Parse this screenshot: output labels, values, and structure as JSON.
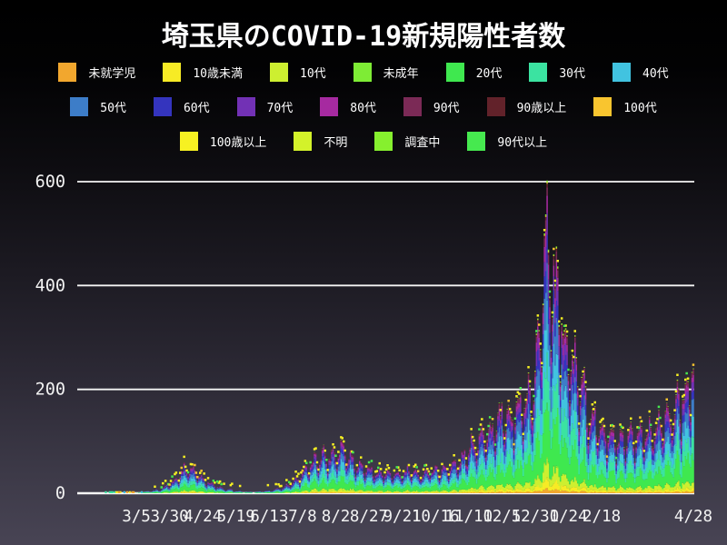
{
  "title": "埼玉県のCOVID-19新規陽性者数",
  "legend": {
    "rows": [
      [
        {
          "label": "未就学児",
          "color": "#F2A72E"
        },
        {
          "label": "10歳未満",
          "color": "#F7EB25"
        },
        {
          "label": "10代",
          "color": "#CDEF30"
        },
        {
          "label": "未成年",
          "color": "#7EEC35"
        },
        {
          "label": "20代",
          "color": "#3FE84F"
        },
        {
          "label": "30代",
          "color": "#3BE3A1"
        },
        {
          "label": "40代",
          "color": "#41C3E0"
        }
      ],
      [
        {
          "label": "50代",
          "color": "#3D7DC8"
        },
        {
          "label": "60代",
          "color": "#3434BE"
        },
        {
          "label": "70代",
          "color": "#7231B5"
        },
        {
          "label": "80代",
          "color": "#A62AA0"
        },
        {
          "label": "90代",
          "color": "#7B2A56"
        },
        {
          "label": "90歳以上",
          "color": "#62222A"
        },
        {
          "label": "100代",
          "color": "#F9C52F"
        }
      ],
      [
        {
          "label": "100歳以上",
          "color": "#F7F122"
        },
        {
          "label": "不明",
          "color": "#D3F22A"
        },
        {
          "label": "調査中",
          "color": "#86F02E"
        },
        {
          "label": "90代以上",
          "color": "#46E94F"
        }
      ]
    ]
  },
  "chart_data": {
    "type": "bar",
    "subtype": "stacked-daily-bars",
    "title": "埼玉県のCOVID-19新規陽性者数",
    "ylabel": "",
    "xlabel": "",
    "yticks": [
      0,
      200,
      400,
      600
    ],
    "ylim": [
      0,
      620
    ],
    "grid": true,
    "grid_color": "#F5F5F5",
    "background": {
      "top": "#000000",
      "bottom": "#474353"
    },
    "x_range_days": [
      -30,
      419
    ],
    "x_ticks": [
      {
        "label": "3/5",
        "day": 0
      },
      {
        "label": "3/30",
        "day": 25
      },
      {
        "label": "4/24",
        "day": 50
      },
      {
        "label": "5/19",
        "day": 75
      },
      {
        "label": "6/13",
        "day": 100
      },
      {
        "label": "7/8",
        "day": 125
      },
      {
        "label": "8/2",
        "day": 150
      },
      {
        "label": "8/27",
        "day": 175
      },
      {
        "label": "9/21",
        "day": 200
      },
      {
        "label": "10/16",
        "day": 225
      },
      {
        "label": "11/10",
        "day": 250
      },
      {
        "label": "12/5",
        "day": 275
      },
      {
        "label": "12/30",
        "day": 300
      },
      {
        "label": "1/24",
        "day": 325
      },
      {
        "label": "2/18",
        "day": 350
      },
      {
        "label": "4/28",
        "day": 419
      }
    ],
    "series": [
      {
        "name": "未就学児",
        "color": "#F2A72E",
        "fraction": 0.015
      },
      {
        "name": "10歳未満",
        "color": "#F7EB25",
        "fraction": 0.03
      },
      {
        "name": "10代",
        "color": "#CDEF30",
        "fraction": 0.055
      },
      {
        "name": "未成年",
        "color": "#7EEC35",
        "fraction": 0.005
      },
      {
        "name": "20代",
        "color": "#3FE84F",
        "fraction": 0.21
      },
      {
        "name": "30代",
        "color": "#3BE3A1",
        "fraction": 0.155
      },
      {
        "name": "40代",
        "color": "#41C3E0",
        "fraction": 0.145
      },
      {
        "name": "50代",
        "color": "#3D7DC8",
        "fraction": 0.125
      },
      {
        "name": "60代",
        "color": "#3434BE",
        "fraction": 0.08
      },
      {
        "name": "70代",
        "color": "#7231B5",
        "fraction": 0.07
      },
      {
        "name": "80代",
        "color": "#A62AA0",
        "fraction": 0.055
      },
      {
        "name": "90代",
        "color": "#7B2A56",
        "fraction": 0.035
      },
      {
        "name": "90歳以上",
        "color": "#62222A",
        "fraction": 0.01
      },
      {
        "name": "100代",
        "color": "#F9C52F",
        "fraction": 0.002
      },
      {
        "name": "100歳以上",
        "color": "#F7F122",
        "fraction": 0.001
      },
      {
        "name": "不明",
        "color": "#D3F22A",
        "fraction": 0.002
      },
      {
        "name": "調査中",
        "color": "#86F02E",
        "fraction": 0.005
      },
      {
        "name": "90代以上",
        "color": "#46E94F",
        "fraction": 0.0
      }
    ],
    "weekly_pattern": [
      1.1,
      1.15,
      1.05,
      0.8,
      0.6,
      0.85,
      1.0
    ],
    "envelope": [
      [
        -30,
        1
      ],
      [
        -24,
        1
      ],
      [
        -18,
        2
      ],
      [
        -12,
        1
      ],
      [
        -6,
        2
      ],
      [
        0,
        2
      ],
      [
        6,
        4
      ],
      [
        12,
        6
      ],
      [
        18,
        9
      ],
      [
        24,
        16
      ],
      [
        30,
        30
      ],
      [
        34,
        42
      ],
      [
        38,
        52
      ],
      [
        42,
        48
      ],
      [
        46,
        40
      ],
      [
        50,
        30
      ],
      [
        55,
        22
      ],
      [
        60,
        15
      ],
      [
        65,
        10
      ],
      [
        70,
        8
      ],
      [
        75,
        6
      ],
      [
        80,
        4
      ],
      [
        85,
        4
      ],
      [
        90,
        4
      ],
      [
        95,
        5
      ],
      [
        100,
        6
      ],
      [
        105,
        9
      ],
      [
        110,
        12
      ],
      [
        115,
        18
      ],
      [
        120,
        26
      ],
      [
        125,
        40
      ],
      [
        130,
        52
      ],
      [
        135,
        68
      ],
      [
        140,
        78
      ],
      [
        145,
        72
      ],
      [
        150,
        82
      ],
      [
        156,
        95
      ],
      [
        160,
        75
      ],
      [
        165,
        62
      ],
      [
        170,
        52
      ],
      [
        175,
        48
      ],
      [
        180,
        42
      ],
      [
        185,
        42
      ],
      [
        190,
        38
      ],
      [
        195,
        36
      ],
      [
        200,
        40
      ],
      [
        205,
        44
      ],
      [
        210,
        40
      ],
      [
        215,
        38
      ],
      [
        220,
        44
      ],
      [
        225,
        48
      ],
      [
        230,
        46
      ],
      [
        235,
        52
      ],
      [
        240,
        58
      ],
      [
        245,
        68
      ],
      [
        250,
        88
      ],
      [
        255,
        105
      ],
      [
        260,
        125
      ],
      [
        265,
        118
      ],
      [
        270,
        135
      ],
      [
        275,
        150
      ],
      [
        280,
        148
      ],
      [
        285,
        165
      ],
      [
        290,
        175
      ],
      [
        295,
        195
      ],
      [
        300,
        225
      ],
      [
        303,
        320
      ],
      [
        306,
        470
      ],
      [
        308,
        530
      ],
      [
        310,
        500
      ],
      [
        312,
        440
      ],
      [
        315,
        400
      ],
      [
        318,
        365
      ],
      [
        321,
        335
      ],
      [
        325,
        290
      ],
      [
        330,
        245
      ],
      [
        335,
        210
      ],
      [
        340,
        172
      ],
      [
        345,
        145
      ],
      [
        350,
        128
      ],
      [
        355,
        116
      ],
      [
        360,
        106
      ],
      [
        365,
        100
      ],
      [
        370,
        106
      ],
      [
        375,
        112
      ],
      [
        380,
        118
      ],
      [
        385,
        124
      ],
      [
        390,
        132
      ],
      [
        395,
        142
      ],
      [
        400,
        152
      ],
      [
        405,
        166
      ],
      [
        410,
        188
      ],
      [
        414,
        212
      ],
      [
        417,
        238
      ],
      [
        419,
        258
      ]
    ],
    "marker_dots": {
      "description": "small scatter dots at bar tops",
      "colors": [
        "#F7F122",
        "#46E94F",
        "#F9C52F"
      ]
    },
    "single_case_dot_colors": [
      "#3BE3A1",
      "#41C3E0",
      "#F7EB25",
      "#F2A72E"
    ]
  }
}
